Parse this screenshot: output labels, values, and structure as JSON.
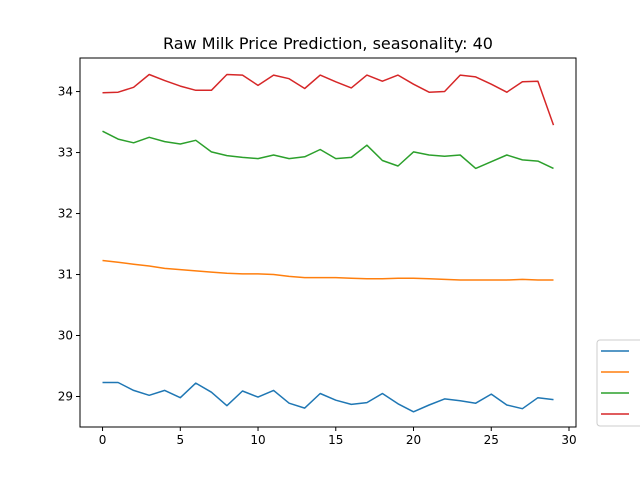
{
  "chart_data": {
    "type": "line",
    "title": "Raw Milk Price Prediction, seasonality: 40",
    "xlabel": "",
    "ylabel": "",
    "xlim": [
      -1.45,
      30.45
    ],
    "ylim": [
      28.5,
      34.55
    ],
    "x_ticks": [
      0,
      5,
      10,
      15,
      20,
      25,
      30
    ],
    "y_ticks": [
      29,
      30,
      31,
      32,
      33,
      34
    ],
    "grid": false,
    "legend_position": "lower-right outside",
    "x": [
      0,
      1,
      2,
      3,
      4,
      5,
      6,
      7,
      8,
      9,
      10,
      11,
      12,
      13,
      14,
      15,
      16,
      17,
      18,
      19,
      20,
      21,
      22,
      23,
      24,
      25,
      26,
      27,
      28,
      29
    ],
    "series": [
      {
        "color": "#1f77b4",
        "values": [
          29.23,
          29.23,
          29.1,
          29.02,
          29.1,
          28.98,
          29.22,
          29.07,
          28.85,
          29.09,
          28.99,
          29.1,
          28.89,
          28.81,
          29.05,
          28.94,
          28.87,
          28.9,
          29.05,
          28.88,
          28.75,
          28.86,
          28.96,
          28.93,
          28.89,
          29.04,
          28.86,
          28.8,
          28.98,
          28.95
        ]
      },
      {
        "color": "#ff7f0e",
        "values": [
          31.23,
          31.2,
          31.17,
          31.14,
          31.1,
          31.08,
          31.06,
          31.04,
          31.02,
          31.01,
          31.01,
          31.0,
          30.97,
          30.95,
          30.95,
          30.95,
          30.94,
          30.93,
          30.93,
          30.94,
          30.94,
          30.93,
          30.92,
          30.91,
          30.91,
          30.91,
          30.91,
          30.92,
          30.91,
          30.91
        ]
      },
      {
        "color": "#2ca02c",
        "values": [
          33.35,
          33.22,
          33.16,
          33.25,
          33.18,
          33.14,
          33.2,
          33.01,
          32.95,
          32.92,
          32.9,
          32.96,
          32.9,
          32.93,
          33.05,
          32.9,
          32.92,
          33.12,
          32.87,
          32.78,
          33.01,
          32.96,
          32.94,
          32.96,
          32.74,
          32.85,
          32.96,
          32.88,
          32.86,
          32.74
        ]
      },
      {
        "color": "#d62728",
        "values": [
          33.98,
          33.99,
          34.07,
          34.28,
          34.18,
          34.09,
          34.02,
          34.02,
          34.28,
          34.27,
          34.1,
          34.27,
          34.21,
          34.05,
          34.27,
          34.16,
          34.06,
          34.27,
          34.17,
          34.27,
          34.12,
          33.99,
          34.0,
          34.27,
          34.24,
          34.12,
          33.99,
          34.16,
          34.17,
          33.45
        ]
      }
    ]
  }
}
